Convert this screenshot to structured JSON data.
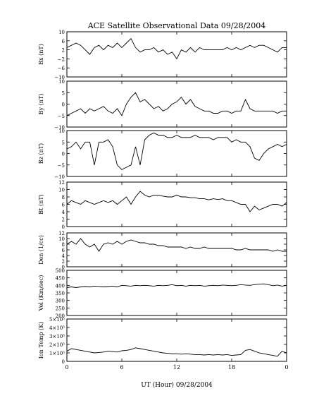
{
  "chart_data": {
    "type": "line",
    "title": "ACE Satellite Observational Data   09/28/2004",
    "xlabel": "UT (Hour)   09/28/2004",
    "x_ticks": [
      "0",
      "6",
      "12",
      "18",
      "0"
    ],
    "x_range": [
      0,
      24
    ],
    "panels": [
      {
        "ylabel": "Bx (nT)",
        "ylim": [
          -10,
          10
        ],
        "yticks": [
          -10,
          -6,
          -2,
          2,
          6,
          10
        ],
        "ytick_labels": [
          "−10",
          "−6",
          "−2",
          "2",
          "6",
          "10"
        ],
        "series": [
          {
            "x": [
              0,
              0.5,
              1,
              1.5,
              2,
              2.5,
              3,
              3.5,
              4,
              4.5,
              5,
              5.5,
              6,
              6.5,
              7,
              7.5,
              8,
              8.5,
              9,
              9.5,
              10,
              10.5,
              11,
              11.5,
              12,
              12.5,
              13,
              13.5,
              14,
              14.5,
              15,
              15.5,
              16,
              16.5,
              17,
              17.5,
              18,
              18.5,
              19,
              19.5,
              20,
              20.5,
              21,
              21.5,
              22,
              22.5,
              23,
              23.5,
              24
            ],
            "values": [
              3,
              4,
              5,
              4,
              2,
              0,
              3,
              4,
              2,
              4,
              3,
              5,
              3,
              5,
              7,
              3,
              1,
              2,
              2,
              3,
              1,
              2,
              0,
              1,
              -2,
              2,
              1,
              3,
              1,
              3,
              2,
              2,
              2,
              2,
              2,
              3,
              2,
              3,
              2,
              3,
              4,
              3,
              4,
              4,
              3,
              2,
              1,
              3,
              3
            ]
          }
        ]
      },
      {
        "ylabel": "By (nT)",
        "ylim": [
          -10,
          10
        ],
        "yticks": [
          -10,
          -5,
          0,
          5,
          10
        ],
        "ytick_labels": [
          "−10",
          "−5",
          "0",
          "5",
          "10"
        ],
        "series": [
          {
            "x": [
              0,
              0.5,
              1,
              1.5,
              2,
              2.5,
              3,
              3.5,
              4,
              4.5,
              5,
              5.5,
              6,
              6.5,
              7,
              7.5,
              8,
              8.5,
              9,
              9.5,
              10,
              10.5,
              11,
              11.5,
              12,
              12.5,
              13,
              13.5,
              14,
              14.5,
              15,
              15.5,
              16,
              16.5,
              17,
              17.5,
              18,
              18.5,
              19,
              19.5,
              20,
              20.5,
              21,
              21.5,
              22,
              22.5,
              23,
              23.5,
              24
            ],
            "values": [
              -5,
              -4,
              -3,
              -2,
              -4,
              -2,
              -3,
              -2,
              -1,
              -3,
              -4,
              -2,
              -5,
              0,
              3,
              5,
              1,
              2,
              0,
              -2,
              -1,
              -3,
              -2,
              0,
              1,
              3,
              0,
              2,
              -1,
              -2,
              -3,
              -3,
              -4,
              -4,
              -3,
              -3,
              -4,
              -3,
              -3,
              2,
              -2,
              -3,
              -3,
              -3,
              -3,
              -3,
              -4,
              -3,
              -3
            ]
          }
        ]
      },
      {
        "ylabel": "Bz (nT)",
        "ylim": [
          -10,
          10
        ],
        "yticks": [
          -10,
          -5,
          0,
          5,
          10
        ],
        "ytick_labels": [
          "−10",
          "−5",
          "0",
          "5",
          "10"
        ],
        "series": [
          {
            "x": [
              0,
              0.5,
              1,
              1.5,
              2,
              2.5,
              3,
              3.5,
              4,
              4.5,
              5,
              5.5,
              6,
              6.5,
              7,
              7.5,
              8,
              8.5,
              9,
              9.5,
              10,
              10.5,
              11,
              11.5,
              12,
              12.5,
              13,
              13.5,
              14,
              14.5,
              15,
              15.5,
              16,
              16.5,
              17,
              17.5,
              18,
              18.5,
              19,
              19.5,
              20,
              20.5,
              21,
              21.5,
              22,
              22.5,
              23,
              23.5,
              24
            ],
            "values": [
              2,
              3,
              5,
              2,
              5,
              5,
              -5,
              5,
              5,
              6,
              3,
              -5,
              -7,
              -6,
              -5,
              3,
              -5,
              6,
              8,
              9,
              8,
              8,
              7,
              7,
              8,
              7,
              7,
              7,
              8,
              7,
              7,
              7,
              6,
              7,
              7,
              7,
              5,
              6,
              5,
              5,
              3,
              -2,
              -3,
              0,
              2,
              3,
              4,
              3,
              4
            ]
          }
        ]
      },
      {
        "ylabel": "Bt (nT)",
        "ylim": [
          0,
          12
        ],
        "yticks": [
          0,
          2,
          4,
          6,
          8,
          10,
          12
        ],
        "ytick_labels": [
          "0",
          "2",
          "4",
          "6",
          "8",
          "10",
          "12"
        ],
        "series": [
          {
            "x": [
              0,
              0.5,
              1,
              1.5,
              2,
              2.5,
              3,
              3.5,
              4,
              4.5,
              5,
              5.5,
              6,
              6.5,
              7,
              7.5,
              8,
              8.5,
              9,
              9.5,
              10,
              10.5,
              11,
              11.5,
              12,
              12.5,
              13,
              13.5,
              14,
              14.5,
              15,
              15.5,
              16,
              16.5,
              17,
              17.5,
              18,
              18.5,
              19,
              19.5,
              20,
              20.5,
              21,
              21.5,
              22,
              22.5,
              23,
              23.5,
              24
            ],
            "values": [
              6,
              7,
              6.5,
              6,
              7,
              6.5,
              6,
              6.5,
              7,
              6.5,
              7,
              6,
              7,
              8,
              6,
              8,
              9.5,
              8.5,
              8,
              8.5,
              8.5,
              8.2,
              8,
              8,
              8.5,
              8,
              8,
              7.8,
              7.8,
              7.5,
              7.5,
              7.2,
              7.5,
              7.3,
              7.5,
              7,
              7,
              6.5,
              6,
              6,
              4,
              5.5,
              4.5,
              5,
              5.5,
              6,
              6,
              5.5,
              6.5
            ]
          }
        ]
      },
      {
        "ylabel": "Den (1/cc)",
        "ylim": [
          0,
          12
        ],
        "yticks": [
          0,
          2,
          4,
          6,
          8,
          10,
          12
        ],
        "ytick_labels": [
          "0",
          "2",
          "4",
          "6",
          "8",
          "10",
          "12"
        ],
        "series": [
          {
            "x": [
              0,
              0.5,
              1,
              1.5,
              2,
              2.5,
              3,
              3.5,
              4,
              4.5,
              5,
              5.5,
              6,
              6.5,
              7,
              7.5,
              8,
              8.5,
              9,
              9.5,
              10,
              10.5,
              11,
              11.5,
              12,
              12.5,
              13,
              13.5,
              14,
              14.5,
              15,
              15.5,
              16,
              16.5,
              17,
              17.5,
              18,
              18.5,
              19,
              19.5,
              20,
              20.5,
              21,
              21.5,
              22,
              22.5,
              23,
              23.5,
              24
            ],
            "values": [
              8,
              9,
              8,
              10,
              8,
              7,
              8,
              5.5,
              8,
              8.5,
              8,
              9,
              8,
              9,
              9.5,
              9,
              8.5,
              8.5,
              8,
              8,
              7.5,
              7.5,
              7,
              7,
              7,
              7,
              6.5,
              7,
              6.5,
              6.5,
              7,
              6.5,
              6.5,
              6.5,
              6.5,
              6.5,
              6.5,
              6,
              6,
              6.5,
              6,
              6,
              6,
              6,
              6,
              5.5,
              6,
              5.5,
              5.5
            ]
          }
        ]
      },
      {
        "ylabel": "Vel (Km/sec)",
        "ylim": [
          200,
          500
        ],
        "yticks": [
          200,
          250,
          300,
          350,
          400,
          450,
          500
        ],
        "ytick_labels": [
          "200",
          "250",
          "300",
          "350",
          "400",
          "450",
          "500"
        ],
        "series": [
          {
            "x": [
              0,
              0.5,
              1,
              1.5,
              2,
              2.5,
              3,
              3.5,
              4,
              4.5,
              5,
              5.5,
              6,
              6.5,
              7,
              7.5,
              8,
              8.5,
              9,
              9.5,
              10,
              10.5,
              11,
              11.5,
              12,
              12.5,
              13,
              13.5,
              14,
              14.5,
              15,
              15.5,
              16,
              16.5,
              17,
              17.5,
              18,
              18.5,
              19,
              19.5,
              20,
              20.5,
              21,
              21.5,
              22,
              22.5,
              23,
              23.5,
              24
            ],
            "values": [
              385,
              390,
              385,
              390,
              392,
              390,
              395,
              393,
              390,
              392,
              395,
              390,
              400,
              398,
              395,
              400,
              398,
              400,
              398,
              395,
              400,
              398,
              400,
              405,
              398,
              400,
              395,
              400,
              398,
              400,
              395,
              398,
              400,
              398,
              402,
              400,
              398,
              400,
              405,
              402,
              400,
              405,
              408,
              410,
              405,
              398,
              402,
              395,
              400
            ]
          }
        ]
      },
      {
        "ylabel": "Ion Temp (K)",
        "ylim": [
          0,
          500000
        ],
        "yticks": [
          0,
          100000,
          200000,
          300000,
          400000,
          500000
        ],
        "ytick_labels": [
          "0",
          "1×10⁵",
          "2×10⁵",
          "3×10⁵",
          "4×10⁵",
          "5×10⁵"
        ],
        "series": [
          {
            "x": [
              0,
              0.5,
              1,
              1.5,
              2,
              2.5,
              3,
              3.5,
              4,
              4.5,
              5,
              5.5,
              6,
              6.5,
              7,
              7.5,
              8,
              8.5,
              9,
              9.5,
              10,
              10.5,
              11,
              11.5,
              12,
              12.5,
              13,
              13.5,
              14,
              14.5,
              15,
              15.5,
              16,
              16.5,
              17,
              17.5,
              18,
              18.5,
              19,
              19.5,
              20,
              20.5,
              21,
              21.5,
              22,
              22.5,
              23,
              23.5,
              24
            ],
            "values": [
              120000,
              150000,
              140000,
              130000,
              120000,
              110000,
              100000,
              105000,
              110000,
              120000,
              115000,
              110000,
              125000,
              130000,
              140000,
              160000,
              150000,
              140000,
              130000,
              120000,
              110000,
              100000,
              95000,
              90000,
              90000,
              85000,
              90000,
              85000,
              80000,
              80000,
              75000,
              80000,
              75000,
              80000,
              75000,
              80000,
              70000,
              75000,
              80000,
              130000,
              140000,
              120000,
              100000,
              90000,
              80000,
              70000,
              60000,
              120000,
              100000
            ]
          }
        ]
      }
    ]
  }
}
